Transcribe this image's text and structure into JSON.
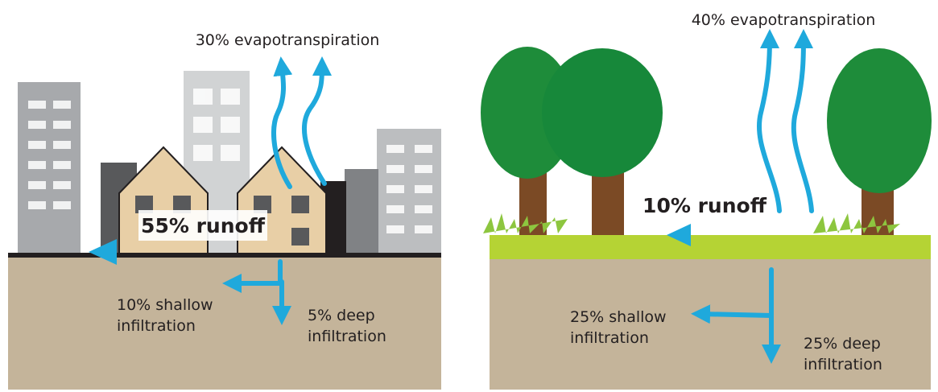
{
  "panels": [
    {
      "evapotranspiration": "30% evapotranspiration",
      "runoff": "55% runoff",
      "shallow": [
        "10% shallow",
        "infiltration"
      ],
      "deep": [
        "5% deep",
        "infiltration"
      ]
    },
    {
      "evapotranspiration": "40% evapotranspiration",
      "runoff": "10% runoff",
      "shallow": [
        "25% shallow",
        "infiltration"
      ],
      "deep": [
        "25% deep",
        "infiltration"
      ]
    }
  ]
}
